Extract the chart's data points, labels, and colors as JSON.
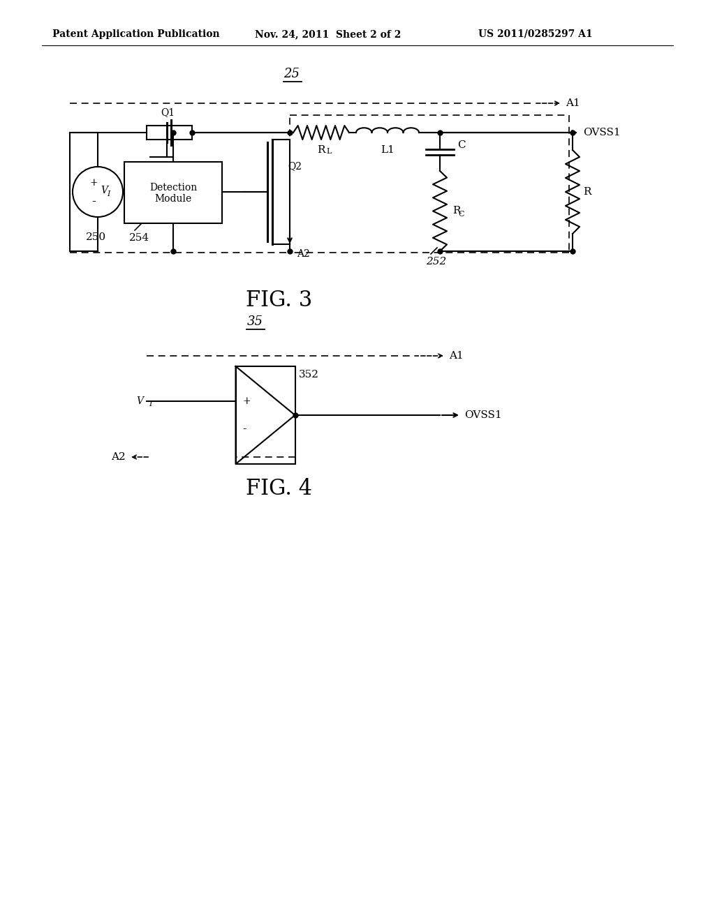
{
  "bg_color": "#ffffff",
  "line_color": "#000000",
  "header_left": "Patent Application Publication",
  "header_mid": "Nov. 24, 2011  Sheet 2 of 2",
  "header_right": "US 2011/0285297 A1",
  "fig3_label": "FIG. 3",
  "fig4_label": "FIG. 4",
  "fig3_number": "25",
  "fig3_252": "252",
  "fig3_250": "250",
  "fig3_254": "254",
  "fig4_number": "35",
  "fig4_352": "352",
  "label_Q1": "Q1",
  "label_Q2": "Q2",
  "label_RL": "RL",
  "label_L1": "L1",
  "label_C": "C",
  "label_RC": "RC",
  "label_R": "R",
  "label_VI": "VI",
  "label_A1": "A1",
  "label_A2": "A2",
  "label_OVSS1": "OVSS1",
  "label_det1": "Detection",
  "label_det2": "Module",
  "label_plus": "+",
  "label_minus": "-"
}
